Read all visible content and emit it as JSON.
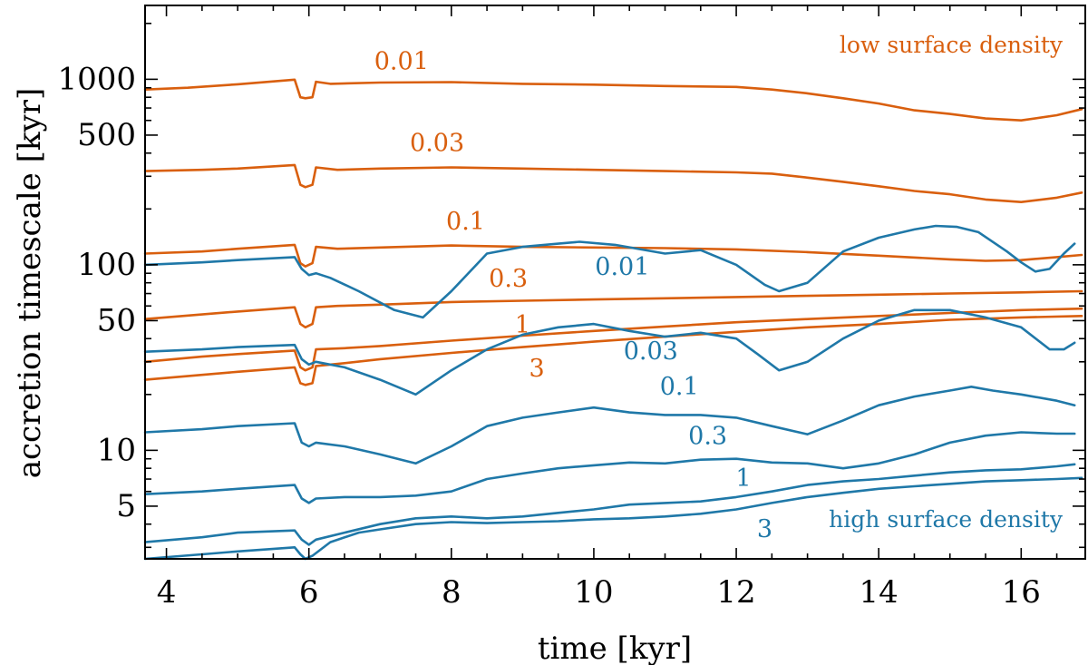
{
  "chart_data": {
    "type": "line",
    "xlabel": "time [kyr]",
    "ylabel": "accretion timescale [kyr]",
    "yscale": "log",
    "xlim": [
      3.7,
      16.9
    ],
    "ylim": [
      2.6,
      2500
    ],
    "xticks": [
      4,
      6,
      8,
      10,
      12,
      14,
      16
    ],
    "xtick_labels": [
      "4",
      "6",
      "8",
      "10",
      "12",
      "14",
      "16"
    ],
    "yticks": [
      5,
      10,
      50,
      100,
      500,
      1000
    ],
    "ytick_labels": [
      "5",
      "10",
      "50",
      "100",
      "500",
      "1000"
    ],
    "colors": {
      "low": "#d95f0e",
      "high": "#1f78a8"
    },
    "annotations": {
      "low": "low surface density",
      "high": "high surface density"
    },
    "series": [
      {
        "name": "0.01",
        "group": "low",
        "label": {
          "text": "0.01",
          "x": 7.3,
          "y": 1130
        },
        "x": [
          3.7,
          4.3,
          5.0,
          5.8,
          5.88,
          5.95,
          6.05,
          6.1,
          6.3,
          7.0,
          8.0,
          9.0,
          10.0,
          11.0,
          12.0,
          12.5,
          13.0,
          13.5,
          14.0,
          14.5,
          15.0,
          15.5,
          16.0,
          16.5,
          16.85
        ],
        "y": [
          880,
          900,
          940,
          995,
          800,
          790,
          800,
          970,
          945,
          960,
          965,
          945,
          935,
          920,
          910,
          880,
          840,
          790,
          740,
          680,
          650,
          615,
          600,
          640,
          690
        ]
      },
      {
        "name": "0.03",
        "group": "low",
        "label": {
          "text": "0.03",
          "x": 7.8,
          "y": 410
        },
        "x": [
          3.7,
          4.5,
          5.0,
          5.8,
          5.88,
          5.95,
          6.05,
          6.1,
          6.4,
          7.0,
          8.0,
          9.0,
          10.0,
          11.0,
          12.0,
          12.5,
          13.0,
          13.5,
          14.0,
          14.5,
          15.0,
          15.5,
          16.0,
          16.5,
          16.85
        ],
        "y": [
          320,
          325,
          330,
          345,
          270,
          262,
          270,
          335,
          325,
          330,
          335,
          330,
          325,
          320,
          315,
          310,
          295,
          280,
          265,
          250,
          240,
          225,
          218,
          230,
          245
        ]
      },
      {
        "name": "0.1",
        "group": "low",
        "label": {
          "text": "0.1",
          "x": 8.2,
          "y": 155
        },
        "x": [
          3.7,
          4.5,
          5.0,
          5.8,
          5.88,
          5.95,
          6.05,
          6.1,
          6.4,
          7.0,
          8.0,
          9.0,
          10.0,
          11.0,
          12.0,
          13.0,
          14.0,
          15.0,
          15.5,
          16.0,
          16.5,
          16.85
        ],
        "y": [
          115,
          118,
          122,
          128,
          102,
          98,
          102,
          125,
          122,
          124,
          127,
          125,
          124,
          123,
          121,
          117,
          112,
          107,
          105,
          106,
          110,
          113
        ]
      },
      {
        "name": "0.3",
        "group": "low",
        "label": {
          "text": "0.3",
          "x": 8.8,
          "y": 76
        },
        "x": [
          3.7,
          4.5,
          5.0,
          5.8,
          5.88,
          5.95,
          6.05,
          6.1,
          6.4,
          7.0,
          8.0,
          9.0,
          10.0,
          11.0,
          12.0,
          13.0,
          14.0,
          15.0,
          16.0,
          16.85
        ],
        "y": [
          51,
          54,
          56,
          59,
          48,
          46,
          48,
          59,
          60,
          61,
          63,
          64,
          65,
          66,
          67,
          68,
          69,
          70,
          71,
          72
        ]
      },
      {
        "name": "1",
        "group": "low",
        "label": {
          "text": "1",
          "x": 9.0,
          "y": 43
        },
        "x": [
          3.7,
          4.5,
          5.0,
          5.8,
          5.88,
          5.95,
          6.05,
          6.1,
          6.5,
          7.0,
          8.0,
          9.0,
          10.0,
          11.0,
          12.0,
          13.0,
          14.0,
          15.0,
          16.0,
          16.85
        ],
        "y": [
          30,
          32,
          33,
          34.5,
          28,
          27,
          28,
          35,
          35.5,
          36.5,
          39,
          41.5,
          44,
          46.5,
          49,
          51,
          53,
          55,
          57,
          58
        ]
      },
      {
        "name": "3",
        "group": "low",
        "label": {
          "text": "3",
          "x": 9.2,
          "y": 25
        },
        "x": [
          3.7,
          4.5,
          5.0,
          5.8,
          5.88,
          5.95,
          6.05,
          6.1,
          6.5,
          7.0,
          8.0,
          9.0,
          10.0,
          11.0,
          12.0,
          13.0,
          14.0,
          15.0,
          16.0,
          16.85
        ],
        "y": [
          24,
          25.5,
          26.5,
          28,
          23,
          22.5,
          23,
          28.5,
          29.5,
          31,
          33.5,
          36,
          38.5,
          41,
          43.5,
          46,
          48,
          50.5,
          52,
          53
        ]
      },
      {
        "name": "0.01",
        "group": "high",
        "label": {
          "text": "0.01",
          "x": 10.4,
          "y": 88
        },
        "x": [
          3.7,
          4.5,
          5.0,
          5.8,
          5.9,
          6.0,
          6.1,
          6.3,
          6.7,
          7.2,
          7.6,
          8.0,
          8.5,
          9.0,
          9.5,
          9.8,
          10.3,
          11.0,
          11.5,
          12.0,
          12.4,
          12.6,
          13.0,
          13.5,
          14.0,
          14.5,
          14.8,
          15.1,
          15.4,
          15.8,
          16.0,
          16.2,
          16.4,
          16.6,
          16.75
        ],
        "y": [
          100,
          103,
          106,
          110,
          95,
          88,
          90,
          85,
          72,
          57,
          52,
          72,
          115,
          125,
          130,
          133,
          128,
          115,
          120,
          100,
          78,
          72,
          80,
          118,
          140,
          155,
          162,
          160,
          150,
          118,
          103,
          92,
          95,
          115,
          130
        ]
      },
      {
        "name": "0.03",
        "group": "high",
        "label": {
          "text": "0.03",
          "x": 10.8,
          "y": 31
        },
        "x": [
          3.7,
          4.5,
          5.0,
          5.8,
          5.9,
          6.0,
          6.1,
          6.5,
          7.0,
          7.5,
          8.0,
          8.5,
          9.0,
          9.5,
          10.0,
          10.5,
          11.0,
          11.5,
          12.0,
          12.3,
          12.6,
          13.0,
          13.5,
          14.0,
          14.5,
          15.0,
          15.5,
          16.0,
          16.4,
          16.6,
          16.75
        ],
        "y": [
          34,
          35,
          36,
          37,
          31,
          29,
          30,
          28,
          24,
          20,
          27,
          35,
          42,
          46,
          48,
          44,
          41,
          43,
          40,
          33,
          27,
          30,
          40,
          50,
          57,
          57,
          52,
          46,
          35,
          35,
          38
        ]
      },
      {
        "name": "0.1",
        "group": "high",
        "label": {
          "text": "0.1",
          "x": 11.2,
          "y": 20
        },
        "x": [
          3.7,
          4.5,
          5.0,
          5.8,
          5.9,
          6.0,
          6.1,
          6.5,
          7.0,
          7.5,
          8.0,
          8.5,
          9.0,
          9.5,
          10.0,
          10.5,
          11.0,
          11.5,
          12.0,
          12.5,
          13.0,
          13.5,
          14.0,
          14.5,
          15.0,
          15.3,
          15.6,
          16.0,
          16.5,
          16.75
        ],
        "y": [
          12.5,
          13,
          13.5,
          14,
          11,
          10.5,
          11,
          10.5,
          9.5,
          8.5,
          10.5,
          13.5,
          15,
          16,
          17,
          16,
          15.5,
          15.5,
          15,
          13.5,
          12.2,
          14.5,
          17.5,
          19.5,
          21,
          22,
          21,
          20,
          18.5,
          17.5
        ]
      },
      {
        "name": "0.3",
        "group": "high",
        "label": {
          "text": "0.3",
          "x": 11.6,
          "y": 10.8
        },
        "x": [
          3.7,
          4.5,
          5.0,
          5.8,
          5.9,
          6.0,
          6.1,
          6.5,
          7.0,
          7.5,
          8.0,
          8.5,
          9.0,
          9.5,
          10.0,
          10.5,
          11.0,
          11.5,
          12.0,
          12.5,
          13.0,
          13.5,
          14.0,
          14.5,
          15.0,
          15.5,
          16.0,
          16.5,
          16.75
        ],
        "y": [
          5.8,
          6.0,
          6.2,
          6.5,
          5.5,
          5.2,
          5.5,
          5.6,
          5.6,
          5.7,
          6.0,
          7.0,
          7.5,
          8.0,
          8.3,
          8.6,
          8.5,
          8.9,
          9.0,
          8.6,
          8.5,
          8.0,
          8.5,
          9.5,
          11,
          12,
          12.5,
          12.3,
          12.3
        ]
      },
      {
        "name": "1",
        "group": "high",
        "label": {
          "text": "1",
          "x": 12.1,
          "y": 6.4
        },
        "x": [
          3.7,
          4.5,
          5.0,
          5.8,
          5.9,
          6.0,
          6.1,
          6.5,
          7.0,
          7.5,
          8.0,
          8.5,
          9.0,
          9.5,
          10.0,
          10.5,
          11.0,
          11.5,
          12.0,
          12.5,
          13.0,
          13.5,
          14.0,
          14.5,
          15.0,
          15.5,
          16.0,
          16.5,
          16.75
        ],
        "y": [
          3.2,
          3.4,
          3.6,
          3.7,
          3.3,
          3.1,
          3.3,
          3.6,
          4.0,
          4.3,
          4.4,
          4.3,
          4.4,
          4.6,
          4.8,
          5.1,
          5.2,
          5.3,
          5.6,
          6.0,
          6.5,
          6.8,
          7.0,
          7.3,
          7.6,
          7.8,
          7.9,
          8.2,
          8.4
        ]
      },
      {
        "name": "3",
        "group": "high",
        "label": {
          "text": "3",
          "x": 12.4,
          "y": 3.4
        },
        "x": [
          3.7,
          4.5,
          5.0,
          5.8,
          5.88,
          5.95,
          6.05,
          6.3,
          6.7,
          7.0,
          7.5,
          8.0,
          8.5,
          9.0,
          9.5,
          10.0,
          10.5,
          11.0,
          11.5,
          12.0,
          12.5,
          13.0,
          13.5,
          14.0,
          14.5,
          15.0,
          15.5,
          16.0,
          16.5,
          16.85
        ],
        "y": [
          2.6,
          2.75,
          2.85,
          3.0,
          2.75,
          2.6,
          2.7,
          3.2,
          3.6,
          3.75,
          4.0,
          4.1,
          4.05,
          4.1,
          4.15,
          4.25,
          4.3,
          4.4,
          4.55,
          4.8,
          5.2,
          5.6,
          5.9,
          6.2,
          6.4,
          6.6,
          6.8,
          6.9,
          7.0,
          7.1
        ]
      }
    ]
  }
}
